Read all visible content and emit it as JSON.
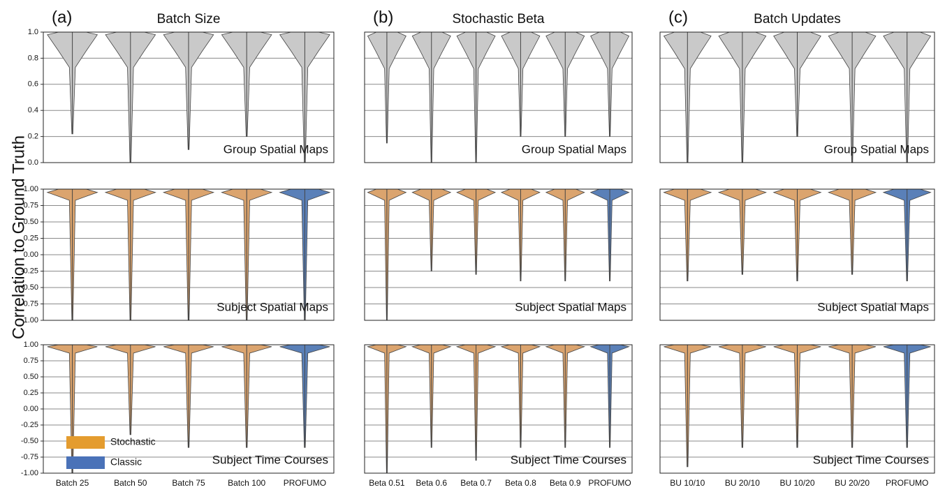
{
  "ylabel": "Correlation to Ground Truth",
  "columns": [
    {
      "letter": "(a)",
      "title": "Batch Size",
      "categories": [
        "Batch 25",
        "Batch 50",
        "Batch 75",
        "Batch 100",
        "PROFUMO"
      ]
    },
    {
      "letter": "(b)",
      "title": "Stochastic Beta",
      "categories": [
        "Beta 0.51",
        "Beta 0.6",
        "Beta 0.7",
        "Beta 0.8",
        "Beta 0.9",
        "PROFUMO"
      ]
    },
    {
      "letter": "(c)",
      "title": "Batch Updates",
      "categories": [
        "BU 10/10",
        "BU 20/10",
        "BU 10/20",
        "BU 20/20",
        "PROFUMO"
      ]
    }
  ],
  "legend": [
    {
      "name": "Stochastic",
      "color": "#e49c2f"
    },
    {
      "name": "Classic",
      "color": "#4a72b8"
    }
  ],
  "chart_data": [
    {
      "type": "violin",
      "annotation": "Group Spatial Maps",
      "ylim": [
        0,
        1
      ],
      "yticks": [
        {
          "value": 0,
          "label": "0.0"
        },
        0.2,
        0.4,
        0.6,
        0.8,
        {
          "value": 1,
          "label": "1.0"
        }
      ],
      "panels": [
        {
          "colors": [
            "#c9c9c9",
            "#c9c9c9",
            "#c9c9c9",
            "#c9c9c9",
            "#c9c9c9"
          ],
          "values": [
            0.98,
            0.98,
            0.98,
            0.98,
            0.98
          ],
          "mins": [
            0.22,
            0.0,
            0.1,
            0.2,
            0.0
          ]
        },
        {
          "colors": [
            "#c9c9c9",
            "#c9c9c9",
            "#c9c9c9",
            "#c9c9c9",
            "#c9c9c9",
            "#c9c9c9"
          ],
          "values": [
            0.97,
            0.97,
            0.97,
            0.97,
            0.97,
            0.97
          ],
          "mins": [
            0.15,
            0.0,
            0.0,
            0.2,
            0.2,
            0.2
          ]
        },
        {
          "colors": [
            "#c9c9c9",
            "#c9c9c9",
            "#c9c9c9",
            "#c9c9c9",
            "#c9c9c9"
          ],
          "values": [
            0.97,
            0.97,
            0.97,
            0.97,
            0.97
          ],
          "mins": [
            0.0,
            0.0,
            0.2,
            0.0,
            0.0
          ]
        }
      ]
    },
    {
      "type": "violin",
      "annotation": "Subject Spatial Maps",
      "ylim": [
        -1,
        1
      ],
      "yticks": [
        {
          "value": -1,
          "label": "-1.00"
        },
        -0.75,
        {
          "value": -0.5,
          "label": "-0.50"
        },
        -0.25,
        {
          "value": 0,
          "label": "0.00"
        },
        0.25,
        {
          "value": 0.5,
          "label": "0.50"
        },
        0.75,
        {
          "value": 1,
          "label": "1.00"
        }
      ],
      "panels": [
        {
          "colors": [
            "#dba46e",
            "#dba46e",
            "#dba46e",
            "#dba46e",
            "#5a80b8"
          ],
          "values": [
            0.95,
            0.95,
            0.95,
            0.95,
            0.95
          ],
          "mins": [
            -1,
            -1,
            -1,
            -1,
            -1
          ]
        },
        {
          "colors": [
            "#dba46e",
            "#dba46e",
            "#dba46e",
            "#dba46e",
            "#dba46e",
            "#5a80b8"
          ],
          "values": [
            0.95,
            0.95,
            0.95,
            0.95,
            0.95,
            0.95
          ],
          "mins": [
            -1,
            -0.25,
            -0.3,
            -0.4,
            -0.4,
            -0.4
          ]
        },
        {
          "colors": [
            "#dba46e",
            "#dba46e",
            "#dba46e",
            "#dba46e",
            "#5a80b8"
          ],
          "values": [
            0.95,
            0.95,
            0.95,
            0.95,
            0.95
          ],
          "mins": [
            -0.4,
            -0.3,
            -0.4,
            -0.3,
            -0.4
          ]
        }
      ]
    },
    {
      "type": "violin",
      "annotation": "Subject Time Courses",
      "ylim": [
        -1,
        1
      ],
      "yticks": [
        {
          "value": -1,
          "label": "-1.00"
        },
        -0.75,
        {
          "value": -0.5,
          "label": "-0.50"
        },
        -0.25,
        {
          "value": 0,
          "label": "0.00"
        },
        0.25,
        {
          "value": 0.5,
          "label": "0.50"
        },
        0.75,
        {
          "value": 1,
          "label": "1.00"
        }
      ],
      "panels": [
        {
          "colors": [
            "#dba46e",
            "#dba46e",
            "#dba46e",
            "#dba46e",
            "#5a80b8"
          ],
          "values": [
            0.97,
            0.97,
            0.97,
            0.97,
            0.97
          ],
          "mins": [
            -1,
            -0.4,
            -0.6,
            -0.6,
            -0.6
          ]
        },
        {
          "colors": [
            "#dba46e",
            "#dba46e",
            "#dba46e",
            "#dba46e",
            "#dba46e",
            "#5a80b8"
          ],
          "values": [
            0.97,
            0.97,
            0.97,
            0.97,
            0.97,
            0.97
          ],
          "mins": [
            -1,
            -0.6,
            -0.8,
            -0.6,
            -0.6,
            -0.6
          ]
        },
        {
          "colors": [
            "#dba46e",
            "#dba46e",
            "#dba46e",
            "#dba46e",
            "#5a80b8"
          ],
          "values": [
            0.97,
            0.97,
            0.97,
            0.97,
            0.97
          ],
          "mins": [
            -0.9,
            -0.6,
            -0.6,
            -0.6,
            -0.6
          ]
        }
      ]
    }
  ]
}
